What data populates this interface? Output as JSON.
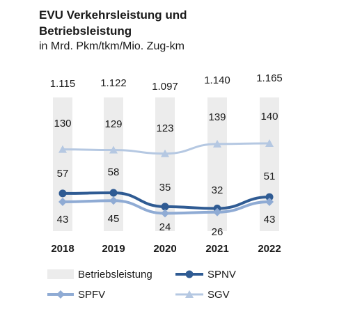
{
  "chart_data": {
    "type": "line",
    "title_lines": [
      "EVU Verkehrsleistung und",
      "Betriebsleistung"
    ],
    "subtitle": "in Mrd. Pkm/tkm/Mio. Zug-km",
    "categories": [
      "2018",
      "2019",
      "2020",
      "2021",
      "2022"
    ],
    "totals": [
      "1.115",
      "1.122",
      "1.097",
      "1.140",
      "1.165"
    ],
    "series": [
      {
        "name": "SGV",
        "values": [
          130,
          129,
          123,
          139,
          140
        ],
        "color": "#b5c8e2",
        "marker": "triangle"
      },
      {
        "name": "SPNV",
        "values": [
          57,
          58,
          35,
          32,
          51
        ],
        "color": "#2f5b93",
        "marker": "circle"
      },
      {
        "name": "SPFV",
        "values": [
          43,
          45,
          24,
          26,
          43
        ],
        "color": "#8fabd4",
        "marker": "diamond"
      }
    ],
    "bars": {
      "name": "Betriebsleistung",
      "color": "#ececec"
    },
    "legend": [
      "Betriebsleistung",
      "SPNV",
      "SPFV",
      "SGV"
    ],
    "grid": false
  }
}
